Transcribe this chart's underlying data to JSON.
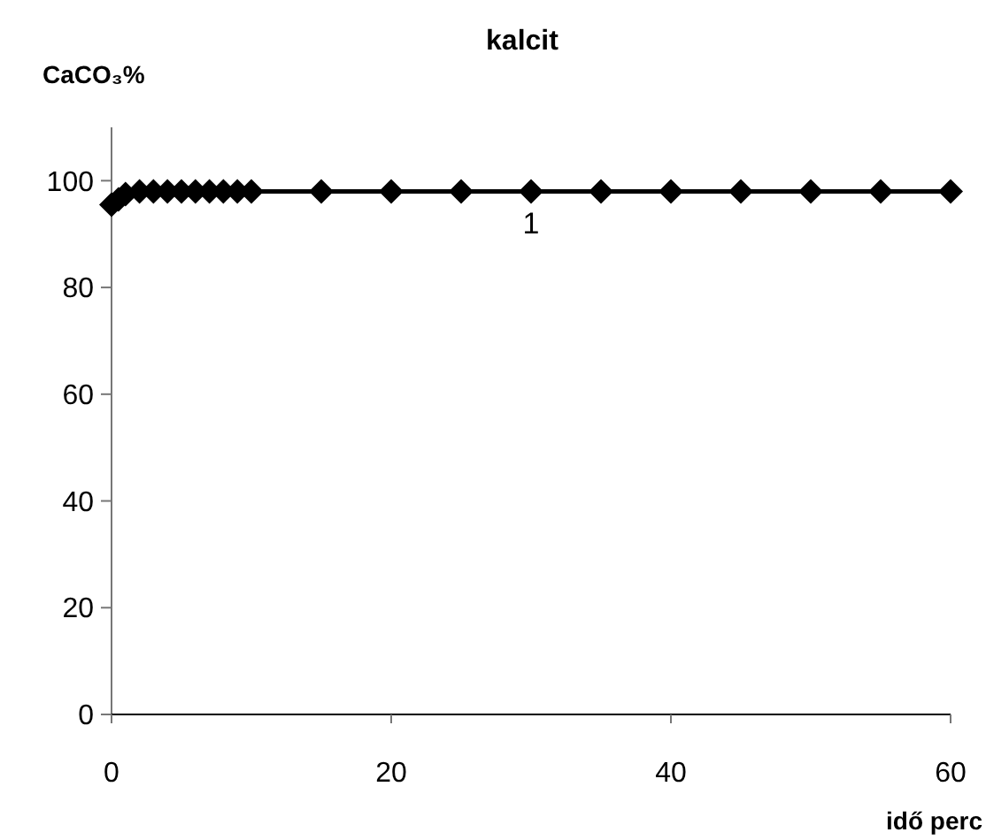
{
  "chart_data": {
    "type": "line",
    "title": "kalcit",
    "ylabel": "CaCO₃%",
    "xlabel": "idő perc",
    "x": [
      0,
      0.5,
      1,
      2,
      3,
      4,
      5,
      6,
      7,
      8,
      9,
      10,
      15,
      20,
      25,
      30,
      35,
      40,
      45,
      50,
      55,
      60
    ],
    "series": [
      {
        "color": "#000000",
        "values": [
          95.5,
          96.5,
          97.5,
          98,
          98,
          98,
          98,
          98,
          98,
          98,
          98,
          98,
          98,
          98,
          98,
          98,
          98,
          98,
          98,
          98,
          98,
          98
        ]
      }
    ],
    "xlim": [
      0,
      60
    ],
    "xticks": [
      0,
      20,
      40,
      60
    ],
    "ylim": [
      0,
      110
    ],
    "yticks": [
      0,
      20,
      40,
      60,
      80,
      100
    ],
    "marker": "diamond",
    "grid": false,
    "annotations": [
      "1"
    ]
  }
}
